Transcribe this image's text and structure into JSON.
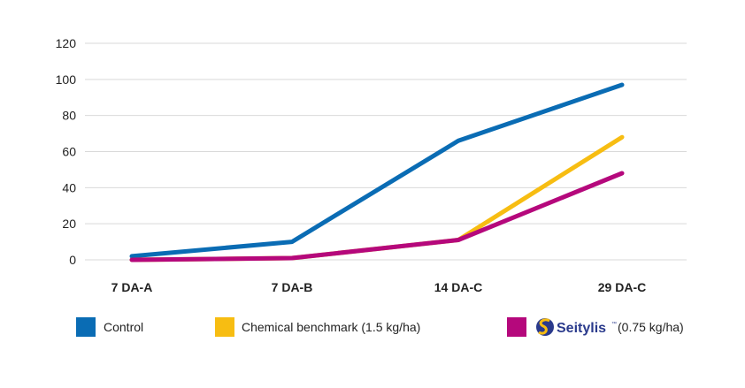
{
  "chart_data": {
    "type": "line",
    "categories": [
      "7 DA-A",
      "7 DA-B",
      "14 DA-C",
      "29 DA-C"
    ],
    "ylim": [
      0,
      120
    ],
    "yticks": [
      0,
      20,
      40,
      60,
      80,
      100,
      120
    ],
    "grid": true,
    "legend_position": "bottom",
    "series": [
      {
        "name": "Control",
        "color": "#0a6cb4",
        "values": [
          2,
          10,
          66,
          97
        ]
      },
      {
        "name": "Chemical benchmark (1.5 kg/ha)",
        "color": "#f7bd12",
        "values": [
          0,
          1,
          11,
          68
        ]
      },
      {
        "name": "(0.75 kg/ha)",
        "logo_text": "Seitylis",
        "color": "#b5087c",
        "values": [
          0,
          1,
          11,
          48
        ]
      }
    ]
  }
}
